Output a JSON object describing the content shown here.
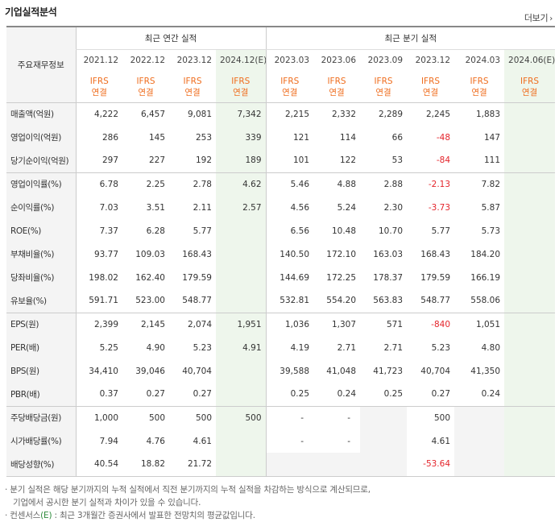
{
  "header": {
    "title": "기업실적분석",
    "more_label": "더보기"
  },
  "table": {
    "row_header_label": "주요재무정보",
    "groups": [
      "최근 연간 실적",
      "최근 분기 실적"
    ],
    "periods": [
      "2021.12",
      "2022.12",
      "2023.12",
      "2024.12(E)",
      "2023.03",
      "2023.06",
      "2023.09",
      "2023.12",
      "2024.03",
      "2024.06(E)"
    ],
    "basis_top": "IFRS",
    "basis_bottom": "연결",
    "rows": [
      {
        "label": "매출액(억원)",
        "values": [
          "4,222",
          "6,457",
          "9,081",
          "7,342",
          "2,215",
          "2,332",
          "2,289",
          "2,245",
          "1,883",
          ""
        ]
      },
      {
        "label": "영업이익(억원)",
        "values": [
          "286",
          "145",
          "253",
          "339",
          "121",
          "114",
          "66",
          "-48",
          "147",
          ""
        ]
      },
      {
        "label": "당기순이익(억원)",
        "values": [
          "297",
          "227",
          "192",
          "189",
          "101",
          "122",
          "53",
          "-84",
          "111",
          ""
        ]
      },
      {
        "label": "영업이익률(%)",
        "values": [
          "6.78",
          "2.25",
          "2.78",
          "4.62",
          "5.46",
          "4.88",
          "2.88",
          "-2.13",
          "7.82",
          ""
        ]
      },
      {
        "label": "순이익률(%)",
        "values": [
          "7.03",
          "3.51",
          "2.11",
          "2.57",
          "4.56",
          "5.24",
          "2.30",
          "-3.73",
          "5.87",
          ""
        ]
      },
      {
        "label": "ROE(%)",
        "values": [
          "7.37",
          "6.28",
          "5.77",
          "",
          "6.56",
          "10.48",
          "10.70",
          "5.77",
          "5.73",
          ""
        ]
      },
      {
        "label": "부채비율(%)",
        "values": [
          "93.77",
          "109.03",
          "168.43",
          "",
          "140.50",
          "172.10",
          "163.03",
          "168.43",
          "184.20",
          ""
        ]
      },
      {
        "label": "당좌비율(%)",
        "values": [
          "198.02",
          "162.40",
          "179.59",
          "",
          "144.69",
          "172.25",
          "178.37",
          "179.59",
          "166.19",
          ""
        ]
      },
      {
        "label": "유보율(%)",
        "values": [
          "591.71",
          "523.00",
          "548.77",
          "",
          "532.81",
          "554.20",
          "563.83",
          "548.77",
          "558.06",
          ""
        ]
      },
      {
        "label": "EPS(원)",
        "values": [
          "2,399",
          "2,145",
          "2,074",
          "1,951",
          "1,036",
          "1,307",
          "571",
          "-840",
          "1,051",
          ""
        ]
      },
      {
        "label": "PER(배)",
        "values": [
          "5.25",
          "4.90",
          "5.23",
          "4.91",
          "4.19",
          "2.71",
          "2.71",
          "5.23",
          "4.80",
          ""
        ]
      },
      {
        "label": "BPS(원)",
        "values": [
          "34,410",
          "39,046",
          "40,704",
          "",
          "39,588",
          "41,048",
          "41,723",
          "40,704",
          "41,350",
          ""
        ]
      },
      {
        "label": "PBR(배)",
        "values": [
          "0.37",
          "0.27",
          "0.27",
          "",
          "0.25",
          "0.24",
          "0.25",
          "0.27",
          "0.24",
          ""
        ]
      },
      {
        "label": "주당배당금(원)",
        "values": [
          "1,000",
          "500",
          "500",
          "500",
          "-",
          "-",
          "",
          "500",
          "",
          ""
        ]
      },
      {
        "label": "시가배당률(%)",
        "values": [
          "7.94",
          "4.76",
          "4.61",
          "",
          "-",
          "-",
          "",
          "4.61",
          "",
          ""
        ]
      },
      {
        "label": "배당성향(%)",
        "values": [
          "40.54",
          "18.82",
          "21.72",
          "",
          "",
          "",
          "",
          "-53.64",
          "",
          ""
        ]
      }
    ]
  },
  "notes": {
    "line1": "분기 실적은 해당 분기까지의 누적 실적에서 직전 분기까지의 누적 실적을 차감하는 방식으로 계산되므로,",
    "line2": "기업에서 공시한 분기 실적과 차이가 있을 수 있습니다.",
    "line3_prefix": "컨센서스",
    "line3_mark": "(E)",
    "line3_rest": ": 최근 3개월간 증권사에서 발표한 전망치의 평균값입니다."
  },
  "colors": {
    "ifrs": "#ef6d1e",
    "negative": "#e4242b",
    "estimate_bg": "#eef6ec",
    "label_bg": "#f4f4f4"
  }
}
